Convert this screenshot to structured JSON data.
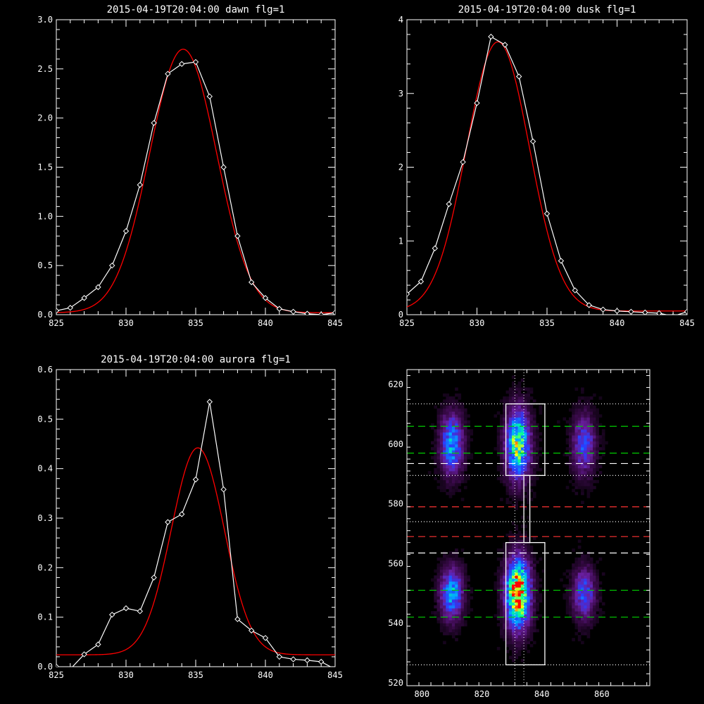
{
  "colors": {
    "background": "#000000",
    "data_line": "#ffffff",
    "fit_line": "#ff0000",
    "marker": "#ffffff",
    "green_dash": "#00cc00",
    "red_dash": "#ff3333",
    "white_dash": "#ffffff"
  },
  "chart_data": [
    {
      "type": "line",
      "title": "2015-04-19T20:04:00 dawn flg=1",
      "xlim": [
        825,
        845
      ],
      "ylim": [
        0,
        3.0
      ],
      "xticks": [
        "825",
        "830",
        "835",
        "840",
        "845"
      ],
      "yticks": [
        "0.0",
        "0.5",
        "1.0",
        "1.5",
        "2.0",
        "2.5",
        "3.0"
      ],
      "xtick_values": [
        825,
        830,
        835,
        840,
        845
      ],
      "ytick_values": [
        0,
        0.5,
        1.0,
        1.5,
        2.0,
        2.5,
        3.0
      ],
      "series": [
        {
          "style": "data",
          "x": [
            825,
            826,
            827,
            828,
            829,
            830,
            831,
            832,
            833,
            834,
            835,
            836,
            837,
            838,
            839,
            840,
            841,
            842,
            843,
            844,
            845
          ],
          "y": [
            0.04,
            0.07,
            0.17,
            0.28,
            0.5,
            0.85,
            1.32,
            1.95,
            2.45,
            2.55,
            2.57,
            2.22,
            1.5,
            0.8,
            0.33,
            0.17,
            0.06,
            0.03,
            0.01,
            0.0,
            0.02
          ]
        },
        {
          "style": "fit",
          "kind": "gaussian",
          "amplitude": 2.68,
          "center": 834.1,
          "sigma": 2.4,
          "offset": 0.02
        }
      ]
    },
    {
      "type": "line",
      "title": "2015-04-19T20:04:00 dusk flg=1",
      "xlim": [
        825,
        845
      ],
      "ylim": [
        0,
        4
      ],
      "xticks": [
        "825",
        "830",
        "835",
        "840",
        "845"
      ],
      "yticks": [
        "0",
        "1",
        "2",
        "3",
        "4"
      ],
      "xtick_values": [
        825,
        830,
        835,
        840,
        845
      ],
      "ytick_values": [
        0,
        1,
        2,
        3,
        4
      ],
      "series": [
        {
          "style": "data",
          "x": [
            825,
            826,
            827,
            828,
            829,
            830,
            831,
            832,
            833,
            834,
            835,
            836,
            837,
            838,
            839,
            840,
            841,
            842,
            843,
            844,
            845
          ],
          "y": [
            0.28,
            0.45,
            0.9,
            1.5,
            2.07,
            2.87,
            3.77,
            3.66,
            3.23,
            2.35,
            1.37,
            0.73,
            0.33,
            0.13,
            0.07,
            0.05,
            0.04,
            0.03,
            0.02,
            -0.02,
            0.04
          ]
        },
        {
          "style": "fit",
          "kind": "gaussian",
          "amplitude": 3.65,
          "center": 831.5,
          "sigma": 2.25,
          "offset": 0.05
        }
      ]
    },
    {
      "type": "line",
      "title": "2015-04-19T20:04:00 aurora flg=1",
      "xlim": [
        825,
        845
      ],
      "ylim": [
        0,
        0.6
      ],
      "xticks": [
        "825",
        "830",
        "835",
        "840",
        "845"
      ],
      "yticks": [
        "0.0",
        "0.1",
        "0.2",
        "0.3",
        "0.4",
        "0.5",
        "0.6"
      ],
      "xtick_values": [
        825,
        830,
        835,
        840,
        845
      ],
      "ytick_values": [
        0,
        0.1,
        0.2,
        0.3,
        0.4,
        0.5,
        0.6
      ],
      "series": [
        {
          "style": "data",
          "x": [
            825,
            826,
            827,
            828,
            829,
            830,
            831,
            832,
            833,
            834,
            835,
            836,
            837,
            838,
            839,
            840,
            841,
            842,
            843,
            844,
            845
          ],
          "y": [
            0.0,
            -0.005,
            0.025,
            0.045,
            0.105,
            0.118,
            0.112,
            0.18,
            0.292,
            0.308,
            0.378,
            0.535,
            0.358,
            0.096,
            0.073,
            0.058,
            0.02,
            0.015,
            0.013,
            0.01,
            -0.005
          ]
        },
        {
          "style": "fit",
          "kind": "gaussian",
          "amplitude": 0.418,
          "center": 835.15,
          "sigma": 1.9,
          "offset": 0.024
        }
      ]
    },
    {
      "type": "heatmap",
      "xlim": [
        795,
        876
      ],
      "ylim": [
        519,
        625
      ],
      "xticks": [
        "800",
        "820",
        "840",
        "860"
      ],
      "yticks": [
        "520",
        "540",
        "560",
        "580",
        "600",
        "620"
      ],
      "xtick_values": [
        800,
        820,
        840,
        860
      ],
      "ytick_values": [
        520,
        540,
        560,
        580,
        600,
        620
      ],
      "colormap": [
        "#000000",
        "#3a0a4a",
        "#6a1fa0",
        "#2a3cff",
        "#00aaff",
        "#00ff99",
        "#ffff00",
        "#ff0000"
      ],
      "blobs": [
        {
          "x": 810,
          "y": 600,
          "sx": 2.6,
          "sy": 7,
          "amp": 0.55
        },
        {
          "x": 810,
          "y": 550,
          "sx": 2.6,
          "sy": 6,
          "amp": 0.55
        },
        {
          "x": 832,
          "y": 600,
          "sx": 2.8,
          "sy": 8,
          "amp": 0.75
        },
        {
          "x": 832,
          "y": 550,
          "sx": 2.8,
          "sy": 8,
          "amp": 1.0
        },
        {
          "x": 854,
          "y": 600,
          "sx": 2.6,
          "sy": 7,
          "amp": 0.4
        },
        {
          "x": 854,
          "y": 550,
          "sx": 2.6,
          "sy": 6,
          "amp": 0.42
        }
      ],
      "hlines": [
        {
          "y": 613.5,
          "style": "dotted",
          "color": "#ffffff"
        },
        {
          "y": 606,
          "style": "dashed",
          "color": "#00cc00"
        },
        {
          "y": 597,
          "style": "dashed",
          "color": "#00cc00"
        },
        {
          "y": 593.5,
          "style": "dashed",
          "color": "#ffffff"
        },
        {
          "y": 589.5,
          "style": "dotted",
          "color": "#ffffff"
        },
        {
          "y": 579,
          "style": "dashed",
          "color": "#ff3333"
        },
        {
          "y": 574,
          "style": "dotted",
          "color": "#ffffff"
        },
        {
          "y": 569,
          "style": "dashed",
          "color": "#ff3333"
        },
        {
          "y": 563.5,
          "style": "dashed",
          "color": "#ffffff"
        },
        {
          "y": 551,
          "style": "dashed",
          "color": "#00cc00"
        },
        {
          "y": 542,
          "style": "dashed",
          "color": "#00cc00"
        },
        {
          "y": 526,
          "style": "dotted",
          "color": "#ffffff"
        }
      ],
      "vlines": [
        {
          "x": 831,
          "style": "dotted",
          "color": "#ffffff"
        },
        {
          "x": 834,
          "style": "dotted",
          "color": "#ffffff"
        }
      ],
      "boxes": [
        {
          "x0": 828,
          "x1": 841,
          "y0": 589.5,
          "y1": 613.5
        },
        {
          "x0": 828,
          "x1": 841,
          "y0": 526,
          "y1": 567
        }
      ],
      "connector": {
        "x0": 834,
        "x1": 836,
        "y0": 567,
        "y1": 589.5
      }
    }
  ]
}
